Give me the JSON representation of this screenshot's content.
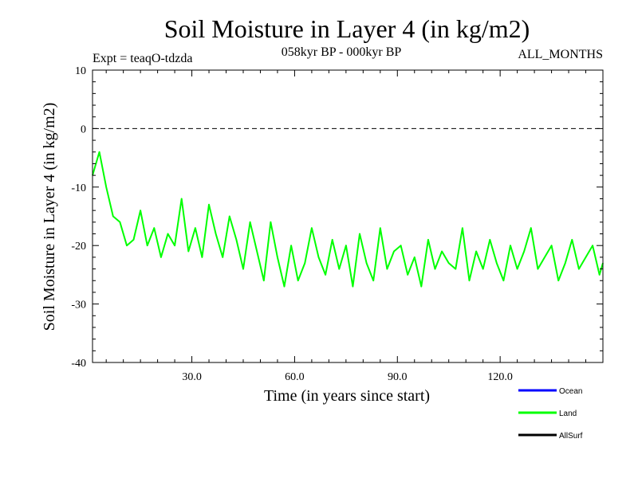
{
  "chart_data": {
    "type": "line",
    "title": "Soil Moisture in Layer 4 (in kg/m2)",
    "subtitle_left": "Expt = teaqO-tdzda",
    "subtitle_center": "058kyr BP - 000kyr BP",
    "subtitle_right": "ALL_MONTHS",
    "xlabel": "Time (in years since start)",
    "ylabel": "Soil Moisture in Layer 4 (in kg/m2)",
    "xlim": [
      1,
      150
    ],
    "ylim": [
      -40,
      10
    ],
    "xticks": [
      30,
      60,
      90,
      120
    ],
    "xtick_labels": [
      "30.0",
      "60.0",
      "90.0",
      "120.0"
    ],
    "yticks": [
      10,
      0,
      -10,
      -20,
      -30,
      -40
    ],
    "ytick_labels": [
      "10",
      "0",
      "-10",
      "-20",
      "-30",
      "-40"
    ],
    "reference_line": 0,
    "legend": [
      {
        "name": "Ocean",
        "color": "#0000ff"
      },
      {
        "name": "Land",
        "color": "#00ff00"
      },
      {
        "name": "AllSurf",
        "color": "#000000"
      }
    ],
    "series": [
      {
        "name": "Land",
        "color": "#00ff00",
        "x": [
          1,
          3,
          5,
          7,
          9,
          11,
          13,
          15,
          17,
          19,
          21,
          23,
          25,
          27,
          29,
          31,
          33,
          35,
          37,
          39,
          41,
          43,
          45,
          47,
          49,
          51,
          53,
          55,
          57,
          59,
          61,
          63,
          65,
          67,
          69,
          71,
          73,
          75,
          77,
          79,
          81,
          83,
          85,
          87,
          89,
          91,
          93,
          95,
          97,
          99,
          101,
          103,
          105,
          107,
          109,
          111,
          113,
          115,
          117,
          119,
          121,
          123,
          125,
          127,
          129,
          131,
          133,
          135,
          137,
          139,
          141,
          143,
          145,
          147,
          149,
          150
        ],
        "values": [
          -8,
          -4,
          -10,
          -15,
          -16,
          -20,
          -19,
          -14,
          -20,
          -17,
          -22,
          -18,
          -20,
          -12,
          -21,
          -17,
          -22,
          -13,
          -18,
          -22,
          -15,
          -19,
          -24,
          -16,
          -21,
          -26,
          -16,
          -22,
          -27,
          -20,
          -26,
          -23,
          -17,
          -22,
          -25,
          -19,
          -24,
          -20,
          -27,
          -18,
          -23,
          -26,
          -17,
          -24,
          -21,
          -20,
          -25,
          -22,
          -27,
          -19,
          -24,
          -21,
          -23,
          -24,
          -17,
          -26,
          -21,
          -24,
          -19,
          -23,
          -26,
          -20,
          -24,
          -21,
          -17,
          -24,
          -22,
          -20,
          -26,
          -23,
          -19,
          -24,
          -22,
          -20,
          -25,
          -23
        ]
      }
    ]
  }
}
